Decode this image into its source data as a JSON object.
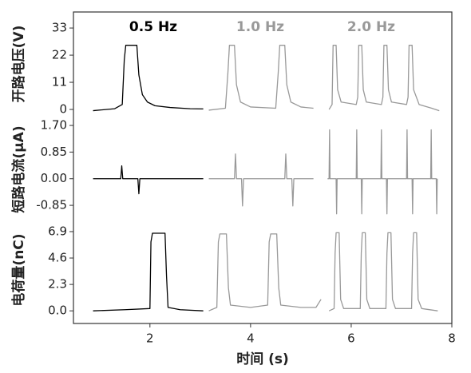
{
  "chart_data": [
    {
      "type": "line",
      "ylabel": "开路电压(V)",
      "ylim": [
        -4.2,
        39.5
      ],
      "yticks": [
        33,
        22,
        11,
        0
      ],
      "annotations": [
        {
          "text": "0.5 Hz",
          "color": "#000000"
        },
        {
          "text": "1.0 Hz",
          "color": "#999999"
        },
        {
          "text": "2.0 Hz",
          "color": "#999999"
        }
      ],
      "series": [
        {
          "color": "#000000",
          "x": [
            0.87,
            1.3,
            1.45,
            1.49,
            1.52,
            1.74,
            1.78,
            1.85,
            1.95,
            2.1,
            2.4,
            2.8,
            3.06
          ],
          "values": [
            -0.5,
            0.3,
            2,
            20,
            26,
            26,
            14,
            6,
            3,
            1.5,
            0.8,
            0.3,
            0.2
          ]
        },
        {
          "color": "#999999",
          "x": [
            3.17,
            3.5,
            3.55,
            3.58,
            3.68,
            3.72,
            3.8,
            4.0,
            4.5,
            4.55,
            4.58,
            4.68,
            4.72,
            4.8,
            5.0,
            5.25
          ],
          "values": [
            -0.3,
            0.5,
            15,
            26,
            26,
            10,
            3,
            1,
            0.5,
            15,
            26,
            26,
            10,
            3,
            1,
            0.5
          ]
        },
        {
          "color": "#999999",
          "x": [
            5.56,
            5.62,
            5.64,
            5.7,
            5.73,
            5.8,
            6.1,
            6.13,
            6.15,
            6.21,
            6.24,
            6.3,
            6.6,
            6.63,
            6.65,
            6.71,
            6.74,
            6.8,
            7.1,
            7.13,
            7.15,
            7.21,
            7.24,
            7.35,
            7.6,
            7.75
          ],
          "values": [
            0,
            2,
            26,
            26,
            8,
            3,
            2,
            5,
            26,
            26,
            8,
            3,
            2,
            5,
            26,
            26,
            8,
            3,
            2,
            5,
            26,
            26,
            8,
            2,
            0.5,
            -0.5
          ]
        }
      ]
    },
    {
      "type": "line",
      "ylabel": "短路电流(μA)",
      "ylim": [
        -1.23,
        1.88
      ],
      "yticks": [
        {
          "value": 1.7,
          "label": "1.70"
        },
        0.85,
        {
          "value": 0,
          "label": "0.00"
        },
        -0.85
      ],
      "series": [
        {
          "color": "#000000",
          "x": [
            0.87,
            1.42,
            1.44,
            1.46,
            1.76,
            1.78,
            1.8,
            3.06
          ],
          "values": [
            0,
            0,
            0.41,
            0,
            0,
            -0.48,
            0,
            0
          ]
        },
        {
          "color": "#999999",
          "x": [
            3.17,
            3.68,
            3.7,
            3.72,
            3.82,
            3.84,
            3.86,
            4.68,
            4.7,
            4.72,
            4.82,
            4.84,
            4.86,
            5.25
          ],
          "values": [
            0,
            0,
            0.79,
            0,
            0,
            -0.87,
            0,
            0,
            0.79,
            0,
            0,
            -0.87,
            0,
            0
          ]
        },
        {
          "color": "#999999",
          "x": [
            5.53,
            5.56,
            5.57,
            5.58,
            5.7,
            5.71,
            5.72,
            6.1,
            6.11,
            6.12,
            6.2,
            6.21,
            6.22,
            6.59,
            6.6,
            6.61,
            6.7,
            6.71,
            6.72,
            7.1,
            7.11,
            7.12,
            7.21,
            7.22,
            7.23,
            7.58,
            7.59,
            7.6,
            7.69,
            7.7,
            7.71
          ],
          "values": [
            0,
            0,
            1.56,
            0,
            0,
            -1.12,
            0,
            0,
            1.56,
            0,
            0,
            -1.12,
            0,
            0,
            1.56,
            0,
            0,
            -1.12,
            0,
            0,
            1.56,
            0,
            0,
            -1.12,
            0,
            0,
            1.56,
            0,
            0,
            -1.12,
            0
          ]
        }
      ]
    },
    {
      "type": "line",
      "ylabel": "电荷量(nC)",
      "ylim": [
        -1.1,
        8.15
      ],
      "yticks": [
        6.9,
        4.6,
        2.3,
        {
          "value": 0,
          "label": "0.0"
        }
      ],
      "xlabel": "时间 (s)",
      "xlim": [
        0.48,
        8
      ],
      "xticks": [
        2,
        4,
        6,
        8
      ],
      "series": [
        {
          "color": "#000000",
          "x": [
            0.87,
            1.5,
            2.0,
            2.02,
            2.05,
            2.3,
            2.33,
            2.36,
            2.6,
            3.06
          ],
          "values": [
            0,
            0.1,
            0.2,
            6,
            6.76,
            6.76,
            3,
            0.3,
            0.1,
            0
          ]
        },
        {
          "color": "#999999",
          "x": [
            3.17,
            3.33,
            3.36,
            3.39,
            3.52,
            3.56,
            3.6,
            4.0,
            4.34,
            4.37,
            4.4,
            4.52,
            4.56,
            4.6,
            5.0,
            5.3,
            5.4
          ],
          "values": [
            0,
            0.3,
            6,
            6.7,
            6.7,
            2,
            0.5,
            0.3,
            0.5,
            6,
            6.7,
            6.7,
            2,
            0.5,
            0.3,
            0.3,
            1.0
          ]
        },
        {
          "color": "#999999",
          "x": [
            5.56,
            5.66,
            5.68,
            5.7,
            5.76,
            5.79,
            5.85,
            6.18,
            6.2,
            6.22,
            6.28,
            6.31,
            6.37,
            6.69,
            6.71,
            6.73,
            6.79,
            6.82,
            6.88,
            7.2,
            7.22,
            7.24,
            7.3,
            7.33,
            7.4,
            7.72
          ],
          "values": [
            0,
            0.2,
            5,
            6.8,
            6.8,
            1,
            0.2,
            0.2,
            5,
            6.8,
            6.8,
            1,
            0.2,
            0.2,
            5,
            6.8,
            6.8,
            1,
            0.2,
            0.2,
            5,
            6.8,
            6.8,
            1,
            0.2,
            0
          ]
        }
      ]
    }
  ]
}
